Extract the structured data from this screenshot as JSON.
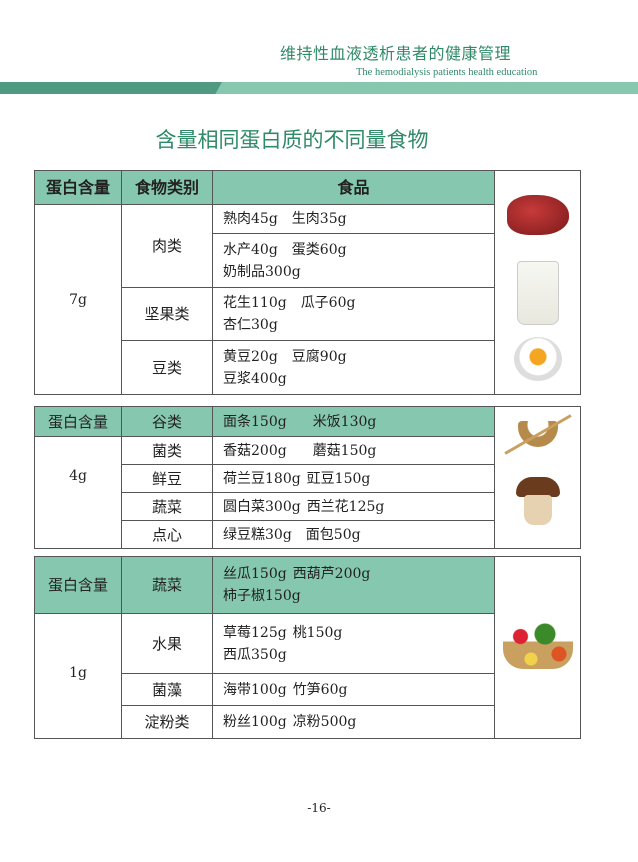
{
  "header": {
    "title_cn": "维持性血液透析患者的健康管理",
    "title_en": "The hemodialysis patients health education"
  },
  "title": "含量相同蛋白质的不同量食物",
  "table1": {
    "headers": [
      "蛋白含量",
      "食物类别",
      "食品"
    ],
    "protein": "7g",
    "groups": [
      {
        "category": "肉类",
        "rows": [
          [
            "熟肉45g",
            "生肉35g"
          ],
          [
            "水产40g",
            "蛋类60g",
            "奶制品300g"
          ]
        ]
      },
      {
        "category": "坚果类",
        "rows": [
          [
            "花生110g",
            "瓜子60g",
            "杏仁30g"
          ]
        ]
      },
      {
        "category": "豆类",
        "rows": [
          [
            "黄豆20g",
            "豆腐90g",
            "豆浆400g"
          ]
        ]
      }
    ],
    "images": [
      "meat-image",
      "milk-image",
      "egg-image"
    ]
  },
  "table2": {
    "header": "蛋白含量",
    "protein": "4g",
    "rows": [
      {
        "category": "谷类",
        "foods": [
          "面条150g",
          "米饭130g"
        ]
      },
      {
        "category": "菌类",
        "foods": [
          "香菇200g",
          "蘑菇150g"
        ]
      },
      {
        "category": "鲜豆",
        "foods": [
          "荷兰豆180g",
          "豇豆150g"
        ]
      },
      {
        "category": "蔬菜",
        "foods": [
          "圆白菜300g",
          "西兰花125g"
        ]
      },
      {
        "category": "点心",
        "foods": [
          "绿豆糕30g",
          "面包50g"
        ]
      }
    ],
    "images": [
      "rice-bowl-image",
      "mushroom-image"
    ]
  },
  "table3": {
    "header": "蛋白含量",
    "protein": "1g",
    "rows": [
      {
        "category": "蔬菜",
        "foods": [
          "丝瓜150g",
          "西葫芦200g",
          "柿子椒150g"
        ]
      },
      {
        "category": "水果",
        "foods": [
          "草莓125g",
          "桃150g",
          "西瓜350g"
        ]
      },
      {
        "category": "菌藻",
        "foods": [
          "海带100g",
          "竹笋60g"
        ]
      },
      {
        "category": "淀粉类",
        "foods": [
          "粉丝100g",
          "凉粉500g"
        ]
      }
    ],
    "images": [
      "vegetable-basket-image"
    ]
  },
  "page_number": "-16-",
  "colors": {
    "accent": "#2f8a68",
    "header_fill": "#86c7b0"
  }
}
